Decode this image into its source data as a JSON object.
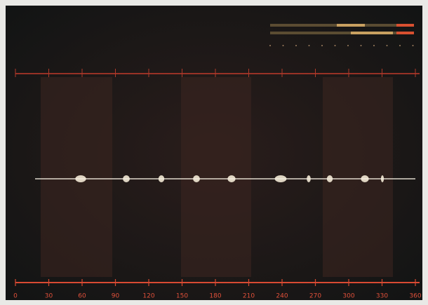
{
  "bottom_axis": {
    "labels": [
      "0",
      "30",
      "60",
      "90",
      "120",
      "150",
      "180",
      "210",
      "240",
      "270",
      "300",
      "330",
      "360"
    ]
  }
}
